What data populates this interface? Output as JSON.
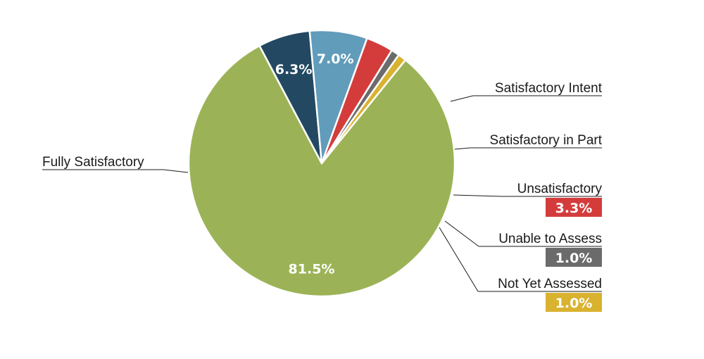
{
  "chart_data": {
    "type": "pie",
    "title": "",
    "slices": [
      {
        "label": "Fully Satisfactory",
        "value": 81.5,
        "display": "81.5%",
        "color": "#9bb356"
      },
      {
        "label": "Satisfactory Intent",
        "value": 6.3,
        "display": "6.3%",
        "color": "#234862"
      },
      {
        "label": "Satisfactory in Part",
        "value": 7.0,
        "display": "7.0%",
        "color": "#619cba"
      },
      {
        "label": "Unsatisfactory",
        "value": 3.3,
        "display": "3.3%",
        "color": "#d43c3c"
      },
      {
        "label": "Unable to Assess",
        "value": 1.0,
        "display": "1.0%",
        "color": "#6b6b6b"
      },
      {
        "label": "Not Yet Assessed",
        "value": 1.0,
        "display": "1.0%",
        "color": "#d9b22f"
      }
    ]
  }
}
